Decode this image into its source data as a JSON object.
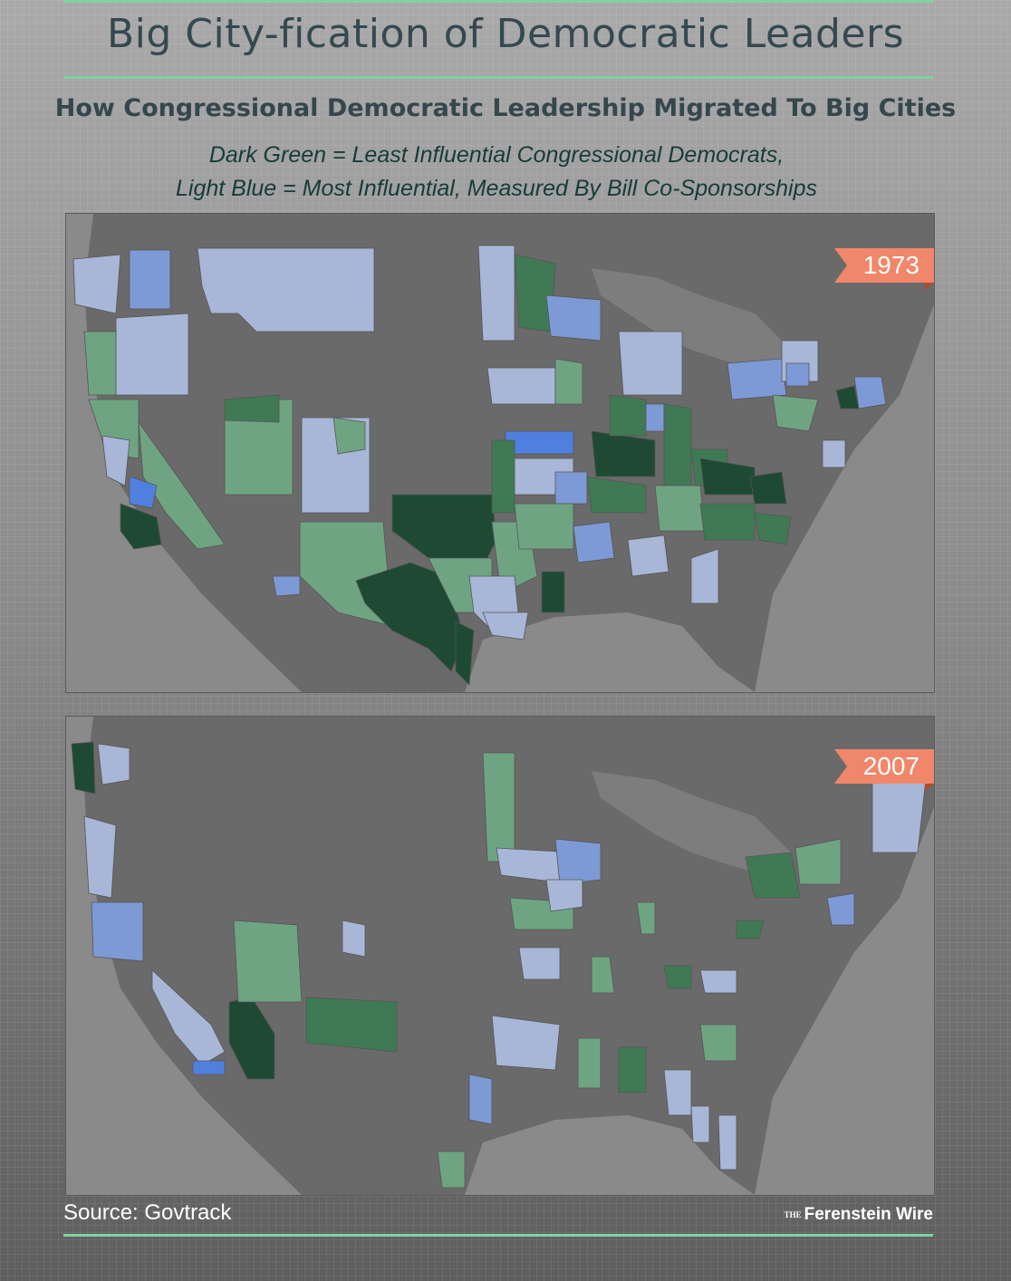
{
  "header": {
    "title": "Big City-fication of Democratic Leaders",
    "subtitle": "How Congressional Democratic Leadership Migrated To Big Cities",
    "legend_line1": "Dark Green = Least Influential Congressional Democrats,",
    "legend_line2": "Light Blue = Most Influential, Measured By Bill Co-Sponsorships"
  },
  "maps": [
    {
      "year": "1973"
    },
    {
      "year": "2007"
    }
  ],
  "colors": {
    "dark_green": "#1e4a33",
    "mid_green": "#3f7a55",
    "light_green": "#6fa483",
    "light_blue": "#a8b7d7",
    "mid_blue": "#7e9ad6",
    "bright_blue": "#4f80e0",
    "land": "#6a6a6a",
    "water": "#8c8c8c",
    "accent_rule": "#7fd3a0",
    "year_tag": "#f0866a"
  },
  "footer": {
    "source": "Source: Govtrack",
    "brand_small": "THE",
    "brand": "Ferenstein Wire"
  }
}
